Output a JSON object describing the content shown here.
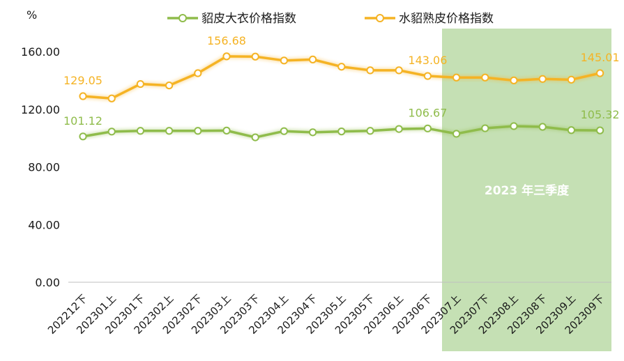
{
  "chart_data": {
    "type": "line",
    "ylabel": "%",
    "ylim": [
      0,
      160
    ],
    "yticks": [
      "0.00",
      "40.00",
      "80.00",
      "120.00",
      "160.00"
    ],
    "categories": [
      "202212下",
      "202301上",
      "202301下",
      "202302上",
      "202302下",
      "202303上",
      "202303下",
      "202304上",
      "202304下",
      "202305上",
      "202305下",
      "202306上",
      "202306下",
      "202307上",
      "202307下",
      "202308上",
      "202308下",
      "202309上",
      "202309下"
    ],
    "series": [
      {
        "name": "貂皮大衣价格指数",
        "color": "#8fbc4b",
        "values": [
          101.12,
          104.5,
          105.0,
          105.0,
          105.0,
          105.2,
          100.5,
          104.8,
          104.0,
          104.6,
          105.0,
          106.3,
          106.67,
          103.0,
          106.8,
          108.3,
          107.8,
          105.5,
          105.32
        ],
        "labels": [
          {
            "index": 0,
            "text": "101.12"
          },
          {
            "index": 12,
            "text": "106.67"
          },
          {
            "index": 18,
            "text": "105.32"
          }
        ]
      },
      {
        "name": "水貂熟皮价格指数",
        "color": "#f5b324",
        "values": [
          129.05,
          127.5,
          137.5,
          136.5,
          145.0,
          156.68,
          156.5,
          153.8,
          154.5,
          149.5,
          147.0,
          147.0,
          143.06,
          142.0,
          142.0,
          140.0,
          141.0,
          140.5,
          145.01
        ],
        "labels": [
          {
            "index": 0,
            "text": "129.05"
          },
          {
            "index": 5,
            "text": "156.68"
          },
          {
            "index": 12,
            "text": "143.06"
          },
          {
            "index": 18,
            "text": "145.01"
          }
        ]
      }
    ],
    "highlight": {
      "label": "2023 年三季度",
      "from_index": 13,
      "to_index": 18,
      "color": "#c5e0b4"
    },
    "legend": "top"
  }
}
